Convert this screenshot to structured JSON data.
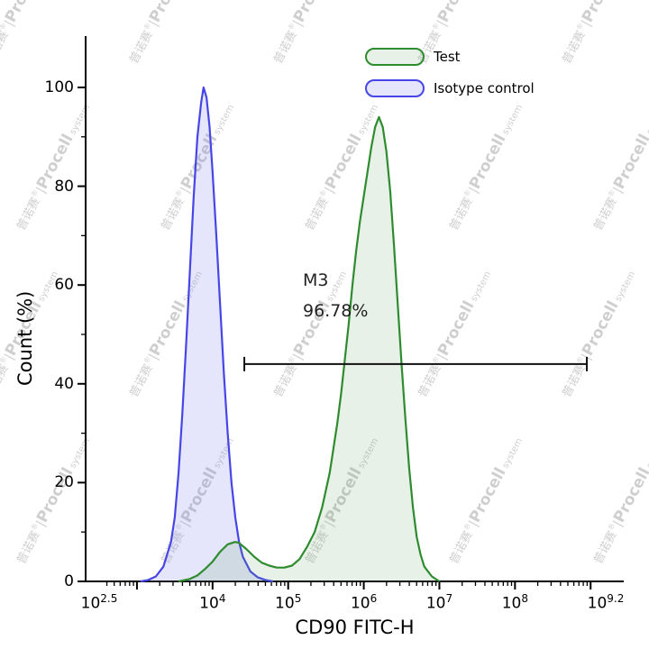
{
  "watermark": {
    "text": "普诺赛®|Procell system",
    "cn": "普诺赛",
    "reg": "®",
    "sep": "|",
    "brand": "Procell",
    "suffix": "system"
  },
  "chart_data": {
    "type": "area",
    "title": "",
    "xlabel": "CD90 FITC-H",
    "ylabel": "Count (%)",
    "x_scale": "log10",
    "x_range_log": [
      2.5,
      9.2
    ],
    "ylim": [
      0,
      105
    ],
    "grid": false,
    "legend_position": "top-center",
    "x_tick_base": "10",
    "x_tick_labels": [
      {
        "log": 2.5,
        "exp": "2.5"
      },
      {
        "log": 4,
        "exp": "4"
      },
      {
        "log": 5,
        "exp": "5"
      },
      {
        "log": 6,
        "exp": "6"
      },
      {
        "log": 7,
        "exp": "7"
      },
      {
        "log": 8,
        "exp": "8"
      },
      {
        "log": 9.2,
        "exp": "9.2"
      }
    ],
    "x_major_ticks_log": [
      3,
      4,
      5,
      6,
      7,
      8,
      9
    ],
    "y_ticks": [
      0,
      20,
      40,
      60,
      80,
      100
    ],
    "y_minor_ticks": [
      10,
      30,
      50,
      70,
      90
    ],
    "series": [
      {
        "name": "Test",
        "color": "#2e8b2e",
        "fill": "rgba(86,158,86,0.14)",
        "points": [
          [
            3.55,
            0
          ],
          [
            3.7,
            0.5
          ],
          [
            3.8,
            1.2
          ],
          [
            3.9,
            2.5
          ],
          [
            4.0,
            4
          ],
          [
            4.1,
            6
          ],
          [
            4.2,
            7.5
          ],
          [
            4.3,
            8
          ],
          [
            4.35,
            7.8
          ],
          [
            4.45,
            6.5
          ],
          [
            4.55,
            5
          ],
          [
            4.65,
            3.8
          ],
          [
            4.75,
            3.2
          ],
          [
            4.85,
            2.8
          ],
          [
            4.95,
            2.8
          ],
          [
            5.05,
            3.2
          ],
          [
            5.15,
            4.5
          ],
          [
            5.25,
            7
          ],
          [
            5.35,
            10
          ],
          [
            5.45,
            15
          ],
          [
            5.55,
            22
          ],
          [
            5.65,
            32
          ],
          [
            5.7,
            38
          ],
          [
            5.75,
            45
          ],
          [
            5.8,
            52
          ],
          [
            5.85,
            60
          ],
          [
            5.9,
            67
          ],
          [
            5.95,
            73
          ],
          [
            6.0,
            78
          ],
          [
            6.05,
            83
          ],
          [
            6.1,
            88
          ],
          [
            6.15,
            92
          ],
          [
            6.2,
            94
          ],
          [
            6.25,
            92
          ],
          [
            6.3,
            87
          ],
          [
            6.35,
            79
          ],
          [
            6.4,
            68
          ],
          [
            6.45,
            56
          ],
          [
            6.5,
            44
          ],
          [
            6.55,
            33
          ],
          [
            6.6,
            23
          ],
          [
            6.65,
            15
          ],
          [
            6.7,
            9
          ],
          [
            6.75,
            5.5
          ],
          [
            6.8,
            3
          ],
          [
            6.9,
            1
          ],
          [
            7.0,
            0
          ]
        ]
      },
      {
        "name": "Isotype control",
        "color": "#4646e8",
        "fill": "rgba(110,110,235,0.18)",
        "points": [
          [
            3.05,
            0
          ],
          [
            3.15,
            0.3
          ],
          [
            3.25,
            1
          ],
          [
            3.35,
            3
          ],
          [
            3.45,
            8
          ],
          [
            3.5,
            13
          ],
          [
            3.55,
            22
          ],
          [
            3.6,
            34
          ],
          [
            3.65,
            48
          ],
          [
            3.7,
            63
          ],
          [
            3.75,
            78
          ],
          [
            3.8,
            90
          ],
          [
            3.85,
            97
          ],
          [
            3.88,
            100
          ],
          [
            3.92,
            98
          ],
          [
            3.96,
            92
          ],
          [
            4.0,
            83
          ],
          [
            4.05,
            70
          ],
          [
            4.1,
            56
          ],
          [
            4.15,
            42
          ],
          [
            4.2,
            30
          ],
          [
            4.25,
            20
          ],
          [
            4.3,
            13
          ],
          [
            4.35,
            8
          ],
          [
            4.4,
            5
          ],
          [
            4.5,
            2
          ],
          [
            4.6,
            0.8
          ],
          [
            4.7,
            0.3
          ],
          [
            4.8,
            0
          ]
        ]
      }
    ],
    "gate": {
      "name": "M3",
      "percent": "96.78%",
      "y": 44,
      "x_start_log": 4.42,
      "x_end_log": 8.95
    }
  }
}
